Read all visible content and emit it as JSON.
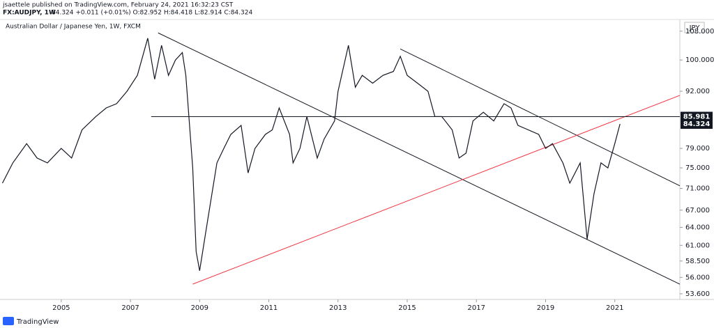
{
  "chart_data": {
    "type": "line",
    "header": [
      "jsaettele published on TradingView.com, February 24, 2021 16:32:23 CST",
      "FX:AUDJPY, 1W",
      "84.324 +0.011 (+0.01%) O:82.952 H:84.418 L:82.914 C:84.324"
    ],
    "title": "Australian Dollar / Japanese Yen, 1W, FXCM",
    "y_unit": "JPY",
    "brand": "TradingView",
    "log_scale": true,
    "grid": false,
    "color": "#131722",
    "x": [
      2003.3,
      2003.6,
      2004.0,
      2004.3,
      2004.6,
      2005.0,
      2005.3,
      2005.6,
      2006.0,
      2006.3,
      2006.6,
      2006.9,
      2007.2,
      2007.5,
      2007.7,
      2007.9,
      2008.1,
      2008.3,
      2008.5,
      2008.6,
      2008.8,
      2008.9,
      2009.0,
      2009.2,
      2009.5,
      2009.7,
      2009.9,
      2010.2,
      2010.4,
      2010.6,
      2010.9,
      2011.1,
      2011.3,
      2011.6,
      2011.7,
      2011.9,
      2012.1,
      2012.4,
      2012.6,
      2012.9,
      2013.0,
      2013.3,
      2013.5,
      2013.7,
      2014.0,
      2014.3,
      2014.6,
      2014.8,
      2015.0,
      2015.3,
      2015.6,
      2015.8,
      2016.0,
      2016.3,
      2016.5,
      2016.7,
      2016.9,
      2017.2,
      2017.5,
      2017.8,
      2018.0,
      2018.2,
      2018.5,
      2018.8,
      2019.0,
      2019.2,
      2019.5,
      2019.7,
      2020.0,
      2020.2,
      2020.4,
      2020.6,
      2020.8,
      2021.0,
      2021.15
    ],
    "values": [
      72,
      76,
      80,
      77,
      76,
      79,
      77,
      83,
      86,
      88,
      89,
      92,
      96,
      106,
      95,
      104,
      96,
      100,
      102,
      96,
      75,
      60,
      57,
      64,
      76,
      79,
      82,
      84,
      74,
      79,
      82,
      83,
      88,
      82,
      76,
      79,
      86,
      77,
      81,
      85,
      92,
      104,
      93,
      96,
      94,
      96,
      97,
      101,
      96,
      94,
      92,
      86,
      86,
      83,
      77,
      78,
      85,
      87,
      85,
      89,
      88,
      84,
      83,
      82,
      79,
      80,
      76,
      72,
      76,
      62,
      70,
      76,
      75,
      80,
      84.324
    ],
    "xlim": [
      2003.23,
      2022.88
    ],
    "ylim": [
      52.8,
      111
    ],
    "xticks": [
      2005,
      2007,
      2009,
      2011,
      2013,
      2015,
      2017,
      2019,
      2021
    ],
    "yticks": [
      {
        "value": 108,
        "label": "108.000"
      },
      {
        "value": 100,
        "label": "100.000"
      },
      {
        "value": 92,
        "label": "92.000"
      },
      {
        "value": 79,
        "label": "79.000"
      },
      {
        "value": 75,
        "label": "75.000"
      },
      {
        "value": 71,
        "label": "71.000"
      },
      {
        "value": 67,
        "label": "67.000"
      },
      {
        "value": 64,
        "label": "64.000"
      },
      {
        "value": 61,
        "label": "61.000"
      },
      {
        "value": 58.5,
        "label": "58.500"
      },
      {
        "value": 56,
        "label": "56.000"
      },
      {
        "value": 53.6,
        "label": "53.600"
      }
    ],
    "lines": [
      {
        "color": "#131722",
        "points": [
          [
            2007.8,
            107.5
          ],
          [
            2022.88,
            55
          ]
        ]
      },
      {
        "color": "#131722",
        "points": [
          [
            2014.8,
            103
          ],
          [
            2022.88,
            71.5
          ]
        ]
      },
      {
        "color": "#f23645",
        "points": [
          [
            2008.8,
            55
          ],
          [
            2022.88,
            91
          ]
        ]
      },
      {
        "color": "#131722",
        "points": [
          [
            2007.6,
            85.981
          ],
          [
            2022.88,
            85.981
          ]
        ]
      }
    ],
    "price_labels": [
      {
        "value": 85.981,
        "color": "#131722"
      },
      {
        "value": 84.324,
        "color": "#131722"
      }
    ]
  }
}
